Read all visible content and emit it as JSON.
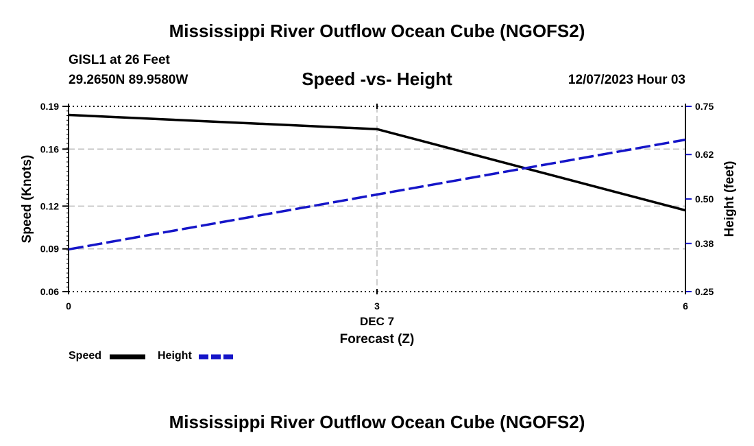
{
  "header": {
    "title": "Mississippi River Outflow Ocean Cube (NGOFS2)",
    "station": "GISL1 at 26 Feet",
    "coordinates": "29.2650N  89.9580W",
    "subtitle": "Speed -vs- Height",
    "timestamp": "12/07/2023 Hour 03"
  },
  "footer": {
    "title": "Mississippi River Outflow Ocean Cube (NGOFS2)"
  },
  "chart_data": {
    "type": "line",
    "title": "Speed -vs- Height",
    "xlabel": "Forecast (Z)",
    "xlabel_date": "DEC 7",
    "ylabel": "Speed (Knots)",
    "ylabel_right": "Height (feet)",
    "x": [
      0,
      3,
      6
    ],
    "x_ticks": [
      0,
      3,
      6
    ],
    "x_tick_labels": [
      "0",
      "3",
      "6"
    ],
    "xlim": [
      0,
      6
    ],
    "ylim": [
      0.06,
      0.19
    ],
    "y_ticks": [
      0.06,
      0.09,
      0.12,
      0.16,
      0.19
    ],
    "y_tick_labels": [
      "0.06",
      "0.09",
      "0.12",
      "0.16",
      "0.19"
    ],
    "ylim_right": [
      0.25,
      0.75
    ],
    "y_ticks_right": [
      0.25,
      0.38,
      0.5,
      0.62,
      0.75
    ],
    "y_tick_labels_right": [
      "0.25",
      "0.38",
      "0.50",
      "0.62",
      "0.75"
    ],
    "grid": true,
    "series": [
      {
        "name": "Speed",
        "axis": "left",
        "color": "#000000",
        "style": "solid",
        "values": [
          0.184,
          0.174,
          0.117
        ]
      },
      {
        "name": "Height",
        "axis": "right",
        "color": "#1515c8",
        "style": "dashed",
        "values": [
          0.364,
          0.512,
          0.66
        ]
      }
    ],
    "legend": {
      "placement": "bottom-left",
      "speed_label": "Speed",
      "height_label": "Height"
    }
  }
}
